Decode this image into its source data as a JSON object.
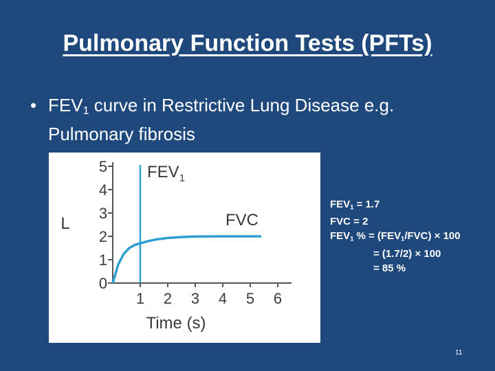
{
  "slide": {
    "title": "Pulmonary Function Tests (PFTs)",
    "bullet_symbol": "•",
    "bullet_pre": "FEV",
    "bullet_sub": "1",
    "bullet_post": " curve in Restrictive Lung Disease e.g.",
    "bullet_line2": "Pulmonary fibrosis",
    "page_number": "11"
  },
  "info": {
    "line1_pre": "FEV",
    "line1_sub": "1",
    "line1_post": " = 1.7",
    "line2": "FVC = 2",
    "line3_pre": "FEV",
    "line3_sub": "1",
    "line3_mid": " % = (FEV",
    "line3_sub2": "1",
    "line3_post": "/FVC) × 100",
    "line4": "= (1.7/2) × 100",
    "line5": "= 85 %"
  },
  "chart_data": {
    "type": "line",
    "xlabel": "Time (s)",
    "ylabel": "L",
    "x_ticks": [
      "1",
      "2",
      "3",
      "4",
      "5",
      "6"
    ],
    "y_ticks": [
      "0",
      "1",
      "2",
      "3",
      "4",
      "5"
    ],
    "xlim": [
      0,
      6.5
    ],
    "ylim": [
      0,
      5
    ],
    "fev1_marker_x": 1,
    "fev1_label_pre": "FEV",
    "fev1_label_sub": "1",
    "fvc_label": "FVC",
    "series": [
      {
        "x": [
          0,
          0.2,
          0.4,
          0.6,
          0.8,
          1.0,
          1.3,
          1.6,
          2.0,
          2.5,
          3.0,
          4.0,
          5.0,
          5.4
        ],
        "values": [
          0,
          0.8,
          1.25,
          1.5,
          1.63,
          1.7,
          1.8,
          1.87,
          1.93,
          1.97,
          1.99,
          2.0,
          2.0,
          2.0
        ]
      }
    ],
    "colors": {
      "curve": "#2f9fd3",
      "axis": "#555555",
      "fev1_line": "#2f9fd3",
      "text": "#3a3a3a"
    }
  }
}
